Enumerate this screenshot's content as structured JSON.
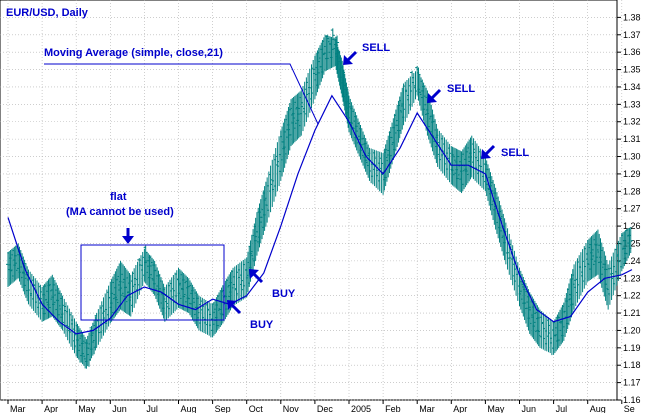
{
  "chart_data": {
    "type": "line",
    "title": "EUR/USD, Daily",
    "ylim": [
      1.16,
      1.39
    ],
    "yticks": [
      1.16,
      1.17,
      1.18,
      1.19,
      1.2,
      1.21,
      1.22,
      1.23,
      1.24,
      1.25,
      1.26,
      1.27,
      1.28,
      1.29,
      1.3,
      1.31,
      1.32,
      1.33,
      1.34,
      1.35,
      1.36,
      1.37,
      1.38
    ],
    "x_tick_labels": [
      "Mar",
      "Apr",
      "May",
      "Jun",
      "Jul",
      "Aug",
      "Sep",
      "Oct",
      "Nov",
      "Dec",
      "2005",
      "Feb",
      "Mar",
      "Apr",
      "May",
      "Jun",
      "Jul",
      "Aug",
      "Se"
    ],
    "grid": true,
    "series": [
      {
        "name": "",
        "style": "ohlc-bars",
        "color": "#008080",
        "x": [
          0,
          0.3,
          0.6,
          1.0,
          1.3,
          1.6,
          2.0,
          2.3,
          2.6,
          3.0,
          3.3,
          3.6,
          4.0,
          4.3,
          4.6,
          5.0,
          5.3,
          5.6,
          6.0,
          6.3,
          6.6,
          7.0,
          7.3,
          7.6,
          8.0,
          8.3,
          8.6,
          9.0,
          9.3,
          9.6,
          9.8,
          10.0,
          10.3,
          10.6,
          11.0,
          11.3,
          11.6,
          12.0,
          12.3,
          12.6,
          13.0,
          13.3,
          13.6,
          14.0,
          14.3,
          14.6,
          15.0,
          15.3,
          15.6,
          16.0,
          16.3,
          16.6,
          17.0,
          17.3,
          17.6,
          18.0,
          18.3
        ],
        "values": [
          1.235,
          1.24,
          1.225,
          1.215,
          1.22,
          1.21,
          1.195,
          1.185,
          1.2,
          1.215,
          1.225,
          1.22,
          1.24,
          1.23,
          1.215,
          1.225,
          1.22,
          1.21,
          1.205,
          1.215,
          1.225,
          1.23,
          1.255,
          1.275,
          1.3,
          1.32,
          1.325,
          1.345,
          1.36,
          1.365,
          1.345,
          1.325,
          1.31,
          1.295,
          1.29,
          1.31,
          1.33,
          1.345,
          1.325,
          1.305,
          1.295,
          1.29,
          1.3,
          1.29,
          1.27,
          1.25,
          1.225,
          1.21,
          1.2,
          1.195,
          1.205,
          1.225,
          1.24,
          1.245,
          1.225,
          1.245,
          1.255
        ],
        "high": [
          1.245,
          1.25,
          1.235,
          1.225,
          1.232,
          1.22,
          1.205,
          1.195,
          1.21,
          1.228,
          1.24,
          1.232,
          1.247,
          1.24,
          1.225,
          1.236,
          1.23,
          1.22,
          1.215,
          1.226,
          1.236,
          1.242,
          1.268,
          1.288,
          1.315,
          1.333,
          1.338,
          1.358,
          1.37,
          1.368,
          1.355,
          1.335,
          1.32,
          1.305,
          1.302,
          1.322,
          1.342,
          1.35,
          1.338,
          1.316,
          1.306,
          1.303,
          1.312,
          1.3,
          1.282,
          1.262,
          1.236,
          1.222,
          1.212,
          1.205,
          1.216,
          1.238,
          1.252,
          1.258,
          1.238,
          1.256,
          1.26
        ],
        "low": [
          1.225,
          1.23,
          1.215,
          1.205,
          1.208,
          1.2,
          1.185,
          1.178,
          1.19,
          1.204,
          1.212,
          1.208,
          1.228,
          1.22,
          1.205,
          1.213,
          1.21,
          1.2,
          1.196,
          1.204,
          1.214,
          1.219,
          1.243,
          1.262,
          1.286,
          1.306,
          1.312,
          1.333,
          1.349,
          1.352,
          1.334,
          1.314,
          1.3,
          1.286,
          1.278,
          1.298,
          1.318,
          1.335,
          1.312,
          1.294,
          1.284,
          1.279,
          1.288,
          1.28,
          1.258,
          1.238,
          1.214,
          1.198,
          1.19,
          1.186,
          1.194,
          1.212,
          1.228,
          1.232,
          1.212,
          1.234,
          1.246
        ]
      },
      {
        "name": "",
        "style": "line",
        "color": "#0000cc",
        "x": [
          0,
          0.5,
          1.0,
          1.5,
          2.0,
          2.5,
          3.0,
          3.5,
          4.0,
          4.5,
          5.0,
          5.5,
          6.0,
          6.5,
          7.0,
          7.5,
          8.0,
          8.5,
          9.0,
          9.5,
          10.0,
          10.5,
          11.0,
          11.5,
          12.0,
          12.5,
          13.0,
          13.5,
          14.0,
          14.5,
          15.0,
          15.5,
          16.0,
          16.5,
          17.0,
          17.5,
          18.0,
          18.3
        ],
        "values": [
          1.265,
          1.235,
          1.215,
          1.205,
          1.198,
          1.2,
          1.207,
          1.22,
          1.225,
          1.222,
          1.215,
          1.212,
          1.218,
          1.215,
          1.22,
          1.233,
          1.26,
          1.29,
          1.315,
          1.335,
          1.32,
          1.3,
          1.29,
          1.305,
          1.325,
          1.31,
          1.295,
          1.295,
          1.29,
          1.26,
          1.232,
          1.212,
          1.205,
          1.208,
          1.222,
          1.23,
          1.232,
          1.235
        ]
      }
    ],
    "annotations": [
      {
        "id": "ma-label",
        "text": "Moving Average (simple, close,21)"
      },
      {
        "id": "flat-title",
        "text": "flat"
      },
      {
        "id": "flat-sub",
        "text": "(MA cannot be used)"
      },
      {
        "id": "sell-1",
        "text": "SELL"
      },
      {
        "id": "sell-2",
        "text": "SELL"
      },
      {
        "id": "sell-3",
        "text": "SELL"
      },
      {
        "id": "buy-1",
        "text": "BUY"
      },
      {
        "id": "buy-2",
        "text": "BUY"
      }
    ]
  }
}
